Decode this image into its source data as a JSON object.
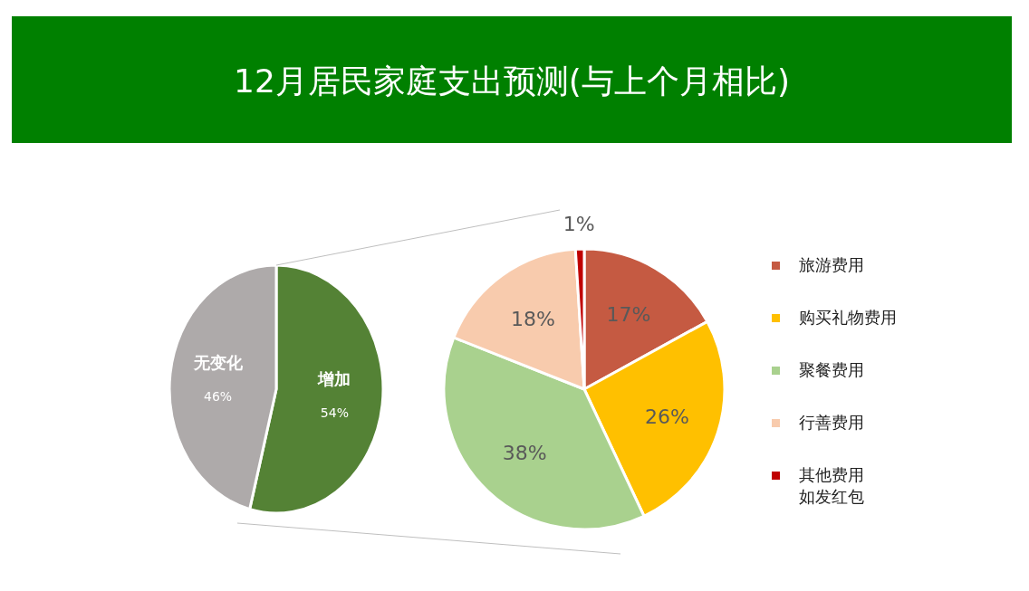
{
  "chart_data": [
    {
      "type": "pie",
      "title": "12月居民家庭支出预测(与上个月相比)",
      "categories": [
        "增加",
        "无变化"
      ],
      "values": [
        54,
        46
      ],
      "colors": [
        "#548235",
        "#aeaaaa"
      ],
      "value_labels": [
        "54%",
        "46%"
      ],
      "legend": false
    },
    {
      "type": "pie",
      "categories": [
        "旅游费用",
        "购买礼物费用",
        "聚餐费用",
        "行善费用",
        "其他费用如发红包"
      ],
      "values": [
        17,
        26,
        38,
        18,
        1
      ],
      "colors": [
        "#c55a42",
        "#ffc000",
        "#a9d18e",
        "#f8cbad",
        "#c00000"
      ],
      "value_labels": [
        "17%",
        "26%",
        "38%",
        "18%",
        "1%"
      ],
      "legend": "right"
    }
  ]
}
